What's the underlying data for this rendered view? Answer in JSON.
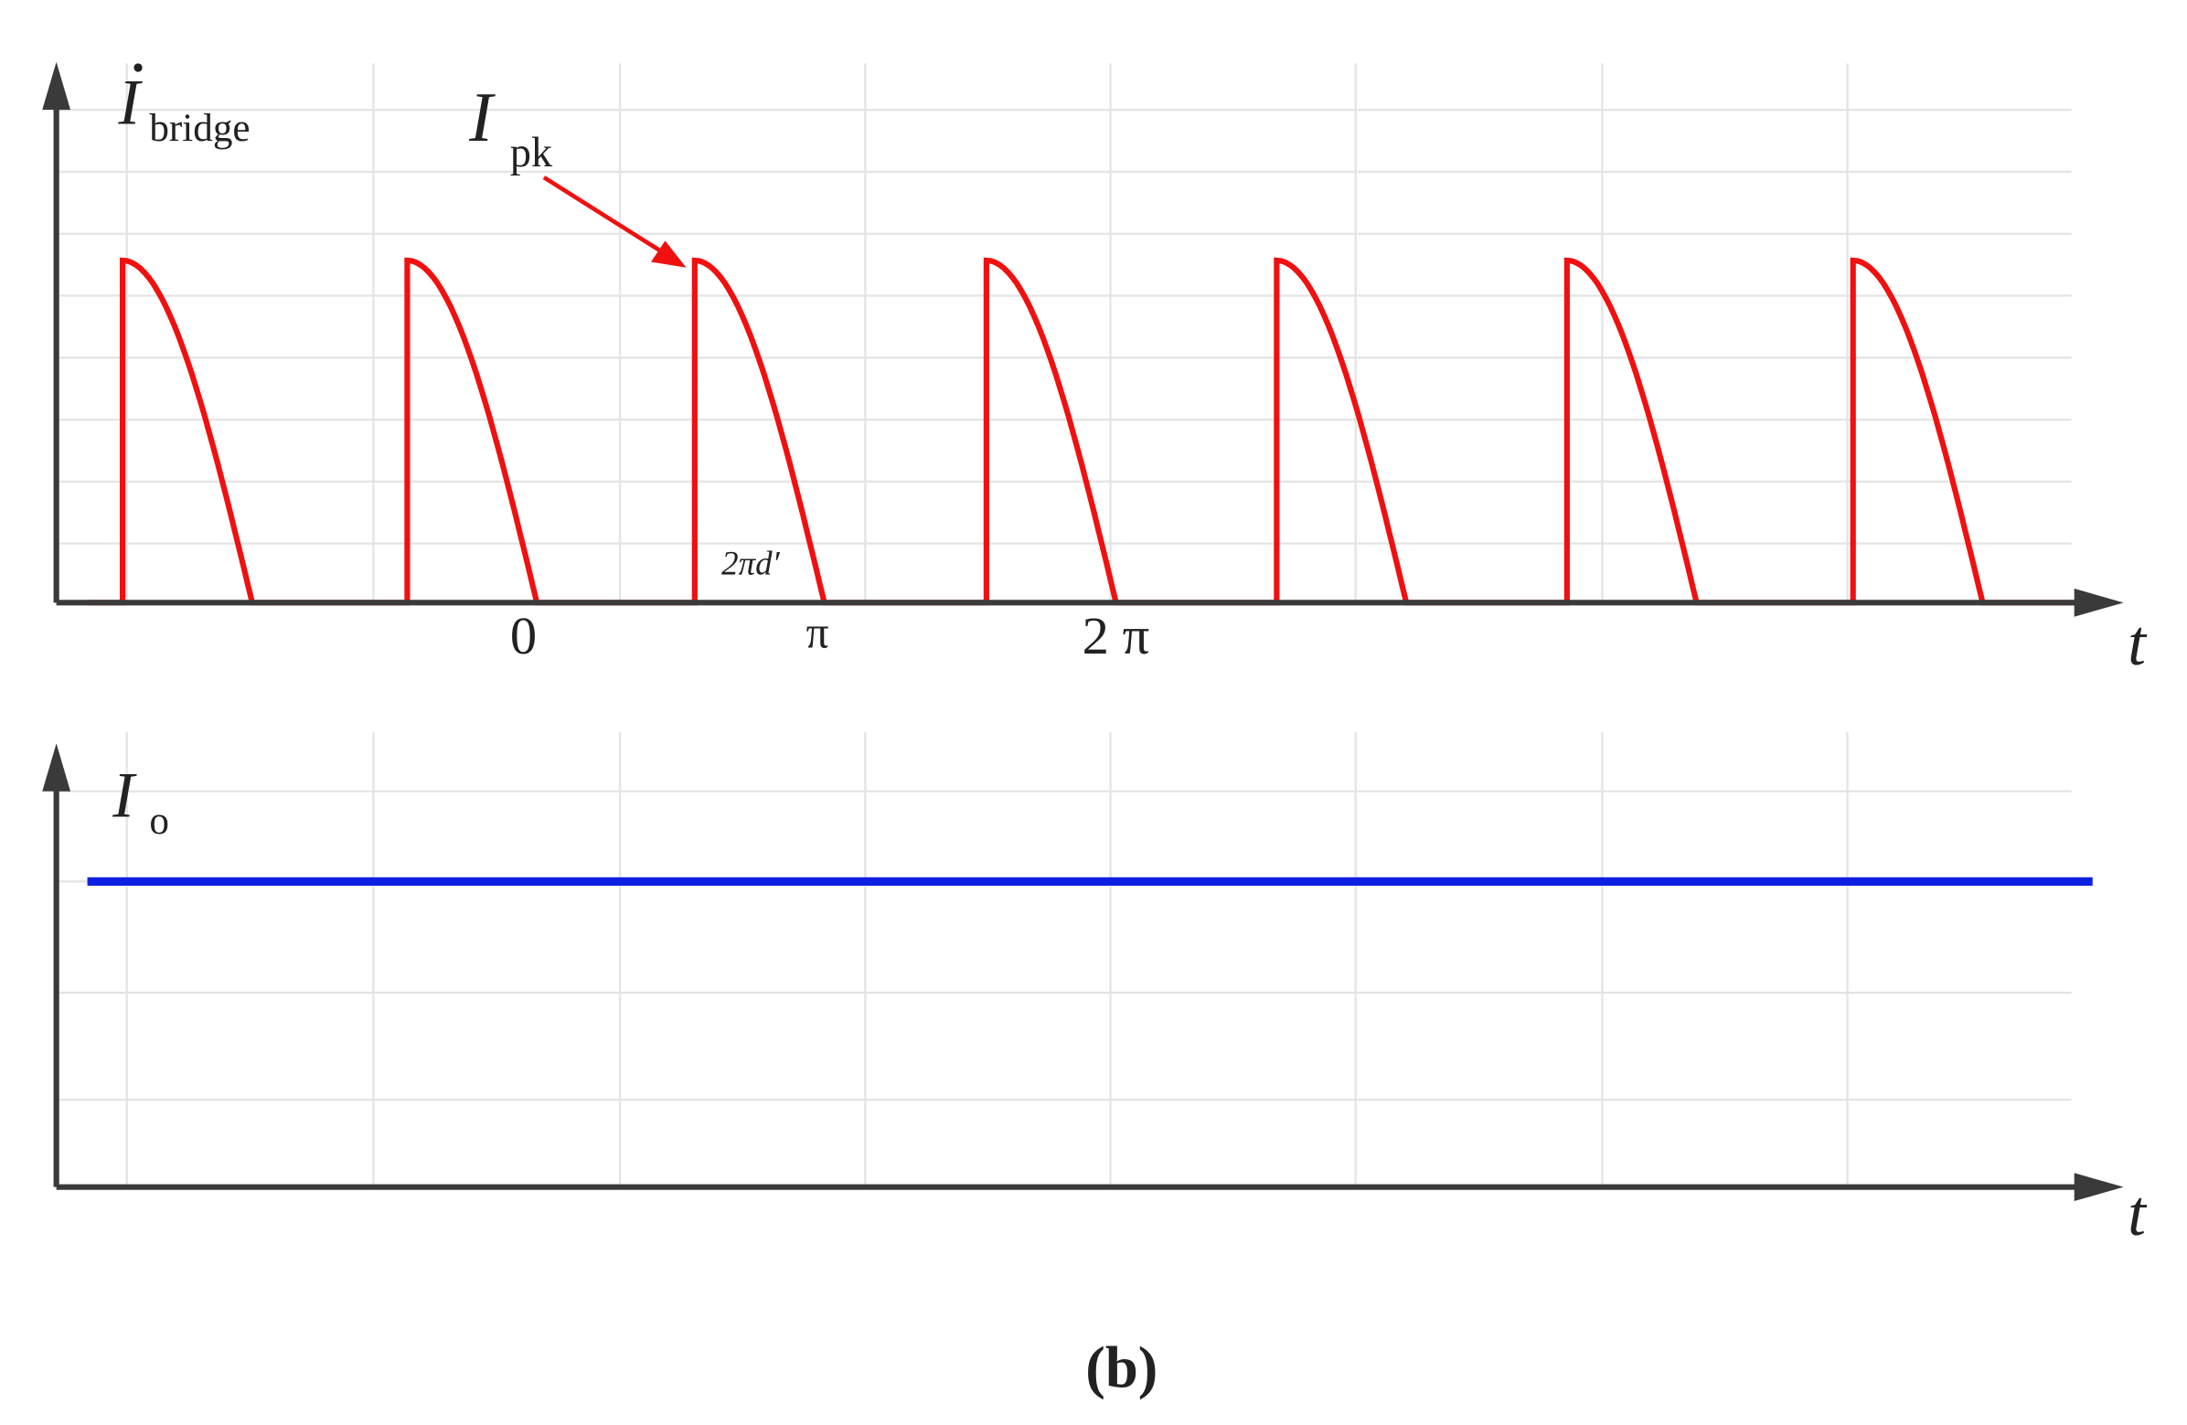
{
  "top_panel": {
    "y_label": {
      "symbol": "I",
      "subscript": "bridge"
    },
    "peak_label": {
      "symbol": "I",
      "subscript": "pk"
    },
    "duty_label": "2πd′",
    "x_ticks": [
      "0",
      "π",
      "2 π"
    ],
    "x_label": "t"
  },
  "bottom_panel": {
    "y_label": {
      "symbol": "I",
      "subscript": "o"
    },
    "x_label": "t"
  },
  "caption": "(b)"
}
